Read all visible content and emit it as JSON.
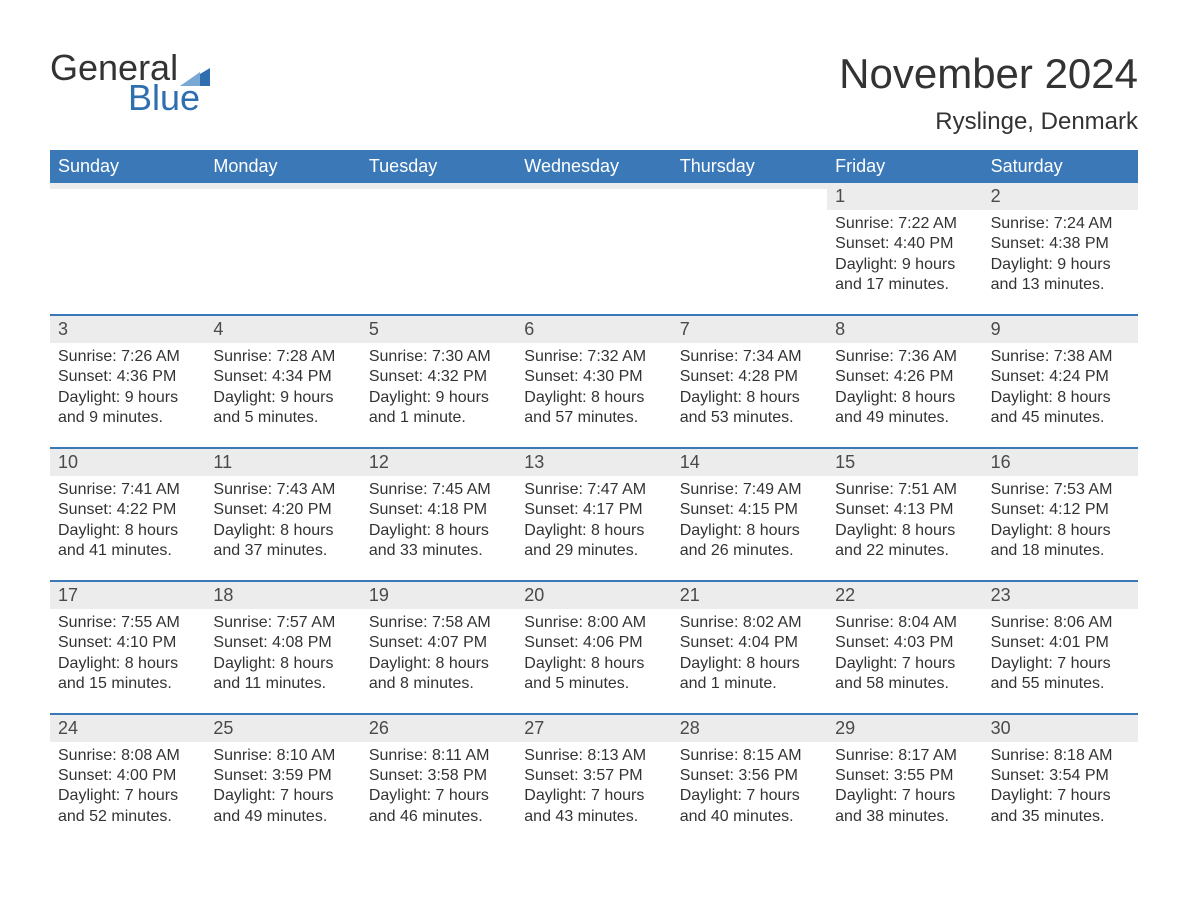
{
  "brand": {
    "word1": "General",
    "word2": "Blue",
    "text_color": "#333333",
    "accent_color": "#2f6fb0",
    "logo_fontsize": 36
  },
  "header": {
    "title": "November 2024",
    "title_fontsize": 42,
    "title_color": "#333333",
    "location": "Ryslinge, Denmark",
    "location_fontsize": 24
  },
  "calendar": {
    "type": "calendar-table",
    "columns": 7,
    "rows": 5,
    "header_bg": "#3a78b8",
    "header_text_color": "#ffffff",
    "header_fontsize": 18,
    "daynum_bg": "#ececec",
    "daynum_color": "#4a4a4a",
    "daynum_fontsize": 18,
    "body_text_color": "#333333",
    "body_fontsize": 16,
    "week_divider_color": "#3a78b8",
    "background_color": "#ffffff",
    "days_of_week": [
      "Sunday",
      "Monday",
      "Tuesday",
      "Wednesday",
      "Thursday",
      "Friday",
      "Saturday"
    ],
    "weeks": [
      [
        {
          "empty": true
        },
        {
          "empty": true
        },
        {
          "empty": true
        },
        {
          "empty": true
        },
        {
          "empty": true
        },
        {
          "num": "1",
          "sunrise": "Sunrise: 7:22 AM",
          "sunset": "Sunset: 4:40 PM",
          "dl1": "Daylight: 9 hours",
          "dl2": "and 17 minutes."
        },
        {
          "num": "2",
          "sunrise": "Sunrise: 7:24 AM",
          "sunset": "Sunset: 4:38 PM",
          "dl1": "Daylight: 9 hours",
          "dl2": "and 13 minutes."
        }
      ],
      [
        {
          "num": "3",
          "sunrise": "Sunrise: 7:26 AM",
          "sunset": "Sunset: 4:36 PM",
          "dl1": "Daylight: 9 hours",
          "dl2": "and 9 minutes."
        },
        {
          "num": "4",
          "sunrise": "Sunrise: 7:28 AM",
          "sunset": "Sunset: 4:34 PM",
          "dl1": "Daylight: 9 hours",
          "dl2": "and 5 minutes."
        },
        {
          "num": "5",
          "sunrise": "Sunrise: 7:30 AM",
          "sunset": "Sunset: 4:32 PM",
          "dl1": "Daylight: 9 hours",
          "dl2": "and 1 minute."
        },
        {
          "num": "6",
          "sunrise": "Sunrise: 7:32 AM",
          "sunset": "Sunset: 4:30 PM",
          "dl1": "Daylight: 8 hours",
          "dl2": "and 57 minutes."
        },
        {
          "num": "7",
          "sunrise": "Sunrise: 7:34 AM",
          "sunset": "Sunset: 4:28 PM",
          "dl1": "Daylight: 8 hours",
          "dl2": "and 53 minutes."
        },
        {
          "num": "8",
          "sunrise": "Sunrise: 7:36 AM",
          "sunset": "Sunset: 4:26 PM",
          "dl1": "Daylight: 8 hours",
          "dl2": "and 49 minutes."
        },
        {
          "num": "9",
          "sunrise": "Sunrise: 7:38 AM",
          "sunset": "Sunset: 4:24 PM",
          "dl1": "Daylight: 8 hours",
          "dl2": "and 45 minutes."
        }
      ],
      [
        {
          "num": "10",
          "sunrise": "Sunrise: 7:41 AM",
          "sunset": "Sunset: 4:22 PM",
          "dl1": "Daylight: 8 hours",
          "dl2": "and 41 minutes."
        },
        {
          "num": "11",
          "sunrise": "Sunrise: 7:43 AM",
          "sunset": "Sunset: 4:20 PM",
          "dl1": "Daylight: 8 hours",
          "dl2": "and 37 minutes."
        },
        {
          "num": "12",
          "sunrise": "Sunrise: 7:45 AM",
          "sunset": "Sunset: 4:18 PM",
          "dl1": "Daylight: 8 hours",
          "dl2": "and 33 minutes."
        },
        {
          "num": "13",
          "sunrise": "Sunrise: 7:47 AM",
          "sunset": "Sunset: 4:17 PM",
          "dl1": "Daylight: 8 hours",
          "dl2": "and 29 minutes."
        },
        {
          "num": "14",
          "sunrise": "Sunrise: 7:49 AM",
          "sunset": "Sunset: 4:15 PM",
          "dl1": "Daylight: 8 hours",
          "dl2": "and 26 minutes."
        },
        {
          "num": "15",
          "sunrise": "Sunrise: 7:51 AM",
          "sunset": "Sunset: 4:13 PM",
          "dl1": "Daylight: 8 hours",
          "dl2": "and 22 minutes."
        },
        {
          "num": "16",
          "sunrise": "Sunrise: 7:53 AM",
          "sunset": "Sunset: 4:12 PM",
          "dl1": "Daylight: 8 hours",
          "dl2": "and 18 minutes."
        }
      ],
      [
        {
          "num": "17",
          "sunrise": "Sunrise: 7:55 AM",
          "sunset": "Sunset: 4:10 PM",
          "dl1": "Daylight: 8 hours",
          "dl2": "and 15 minutes."
        },
        {
          "num": "18",
          "sunrise": "Sunrise: 7:57 AM",
          "sunset": "Sunset: 4:08 PM",
          "dl1": "Daylight: 8 hours",
          "dl2": "and 11 minutes."
        },
        {
          "num": "19",
          "sunrise": "Sunrise: 7:58 AM",
          "sunset": "Sunset: 4:07 PM",
          "dl1": "Daylight: 8 hours",
          "dl2": "and 8 minutes."
        },
        {
          "num": "20",
          "sunrise": "Sunrise: 8:00 AM",
          "sunset": "Sunset: 4:06 PM",
          "dl1": "Daylight: 8 hours",
          "dl2": "and 5 minutes."
        },
        {
          "num": "21",
          "sunrise": "Sunrise: 8:02 AM",
          "sunset": "Sunset: 4:04 PM",
          "dl1": "Daylight: 8 hours",
          "dl2": "and 1 minute."
        },
        {
          "num": "22",
          "sunrise": "Sunrise: 8:04 AM",
          "sunset": "Sunset: 4:03 PM",
          "dl1": "Daylight: 7 hours",
          "dl2": "and 58 minutes."
        },
        {
          "num": "23",
          "sunrise": "Sunrise: 8:06 AM",
          "sunset": "Sunset: 4:01 PM",
          "dl1": "Daylight: 7 hours",
          "dl2": "and 55 minutes."
        }
      ],
      [
        {
          "num": "24",
          "sunrise": "Sunrise: 8:08 AM",
          "sunset": "Sunset: 4:00 PM",
          "dl1": "Daylight: 7 hours",
          "dl2": "and 52 minutes."
        },
        {
          "num": "25",
          "sunrise": "Sunrise: 8:10 AM",
          "sunset": "Sunset: 3:59 PM",
          "dl1": "Daylight: 7 hours",
          "dl2": "and 49 minutes."
        },
        {
          "num": "26",
          "sunrise": "Sunrise: 8:11 AM",
          "sunset": "Sunset: 3:58 PM",
          "dl1": "Daylight: 7 hours",
          "dl2": "and 46 minutes."
        },
        {
          "num": "27",
          "sunrise": "Sunrise: 8:13 AM",
          "sunset": "Sunset: 3:57 PM",
          "dl1": "Daylight: 7 hours",
          "dl2": "and 43 minutes."
        },
        {
          "num": "28",
          "sunrise": "Sunrise: 8:15 AM",
          "sunset": "Sunset: 3:56 PM",
          "dl1": "Daylight: 7 hours",
          "dl2": "and 40 minutes."
        },
        {
          "num": "29",
          "sunrise": "Sunrise: 8:17 AM",
          "sunset": "Sunset: 3:55 PM",
          "dl1": "Daylight: 7 hours",
          "dl2": "and 38 minutes."
        },
        {
          "num": "30",
          "sunrise": "Sunrise: 8:18 AM",
          "sunset": "Sunset: 3:54 PM",
          "dl1": "Daylight: 7 hours",
          "dl2": "and 35 minutes."
        }
      ]
    ]
  }
}
